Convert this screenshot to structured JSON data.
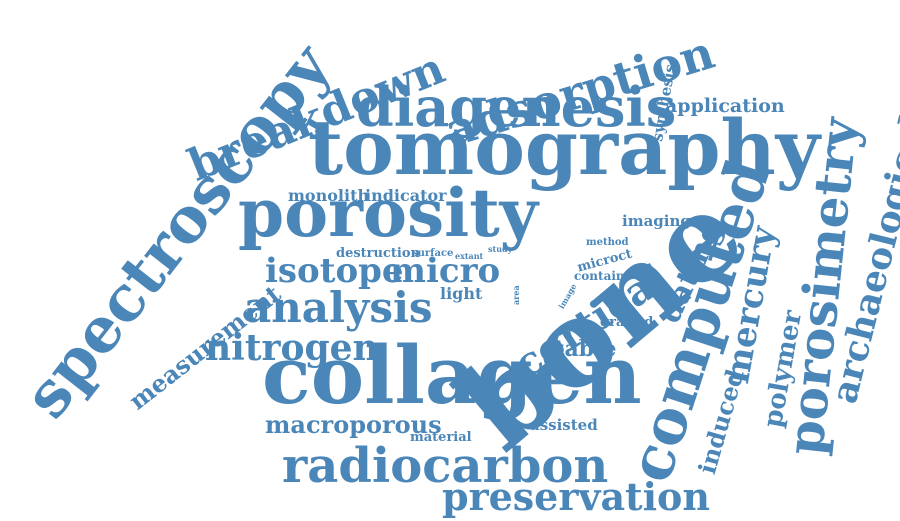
{
  "colors": {
    "word": "#4a86b8",
    "background": "#ffffff"
  },
  "words": [
    "bone",
    "collagen",
    "tomography",
    "porosity",
    "spectroscopy",
    "computed",
    "diagenesis",
    "porosimetry",
    "radiocarbon",
    "adsorption",
    "breakdown",
    "preservation",
    "analysis",
    "cortical",
    "isotope",
    "micro",
    "nitrogen",
    "archaeological",
    "mercury",
    "dating",
    "macroporous",
    "measurement",
    "polymer",
    "induced",
    "stable",
    "application",
    "synthesis",
    "monolith",
    "indicator",
    "imaging",
    "destruction",
    "surface",
    "extant",
    "light",
    "study",
    "method",
    "microct",
    "contain",
    "area",
    "image",
    "grafted",
    "material",
    "assisted"
  ]
}
